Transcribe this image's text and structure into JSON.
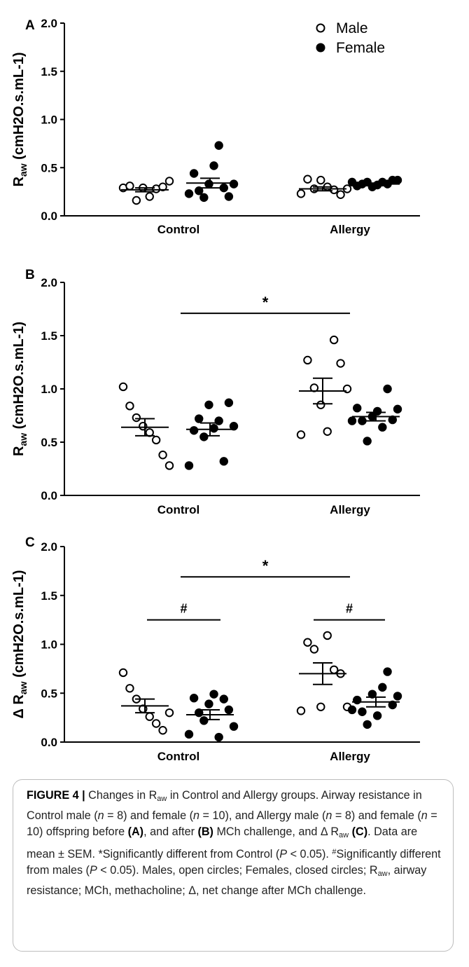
{
  "chart_data": [
    {
      "panel": "A",
      "type": "scatter",
      "ylabel_main": "R",
      "ylabel_sub": "aw",
      "ylabel_unit": "(cmH2O.s.mL-1)",
      "ylim": [
        0,
        2.0
      ],
      "yticks": [
        "0.0",
        "0.5",
        "1.0",
        "1.5",
        "2.0"
      ],
      "categories": [
        "Control",
        "Allergy"
      ],
      "legend": {
        "placement": "top-right",
        "entries": [
          "Male",
          "Female"
        ]
      },
      "groups": [
        {
          "category": "Control",
          "sex": "Male",
          "filled": false,
          "values": [
            0.29,
            0.31,
            0.16,
            0.29,
            0.2,
            0.28,
            0.3,
            0.36
          ],
          "mean": 0.27,
          "sem": 0.02
        },
        {
          "category": "Control",
          "sex": "Female",
          "filled": true,
          "values": [
            0.23,
            0.44,
            0.26,
            0.19,
            0.33,
            0.52,
            0.73,
            0.29,
            0.2,
            0.33
          ],
          "mean": 0.34,
          "sem": 0.05
        },
        {
          "category": "Allergy",
          "sex": "Male",
          "filled": false,
          "values": [
            0.23,
            0.38,
            0.28,
            0.37,
            0.3,
            0.27,
            0.22,
            0.28
          ],
          "mean": 0.28,
          "sem": 0.02
        },
        {
          "category": "Allergy",
          "sex": "Female",
          "filled": true,
          "values": [
            0.35,
            0.31,
            0.33,
            0.35,
            0.3,
            0.32,
            0.35,
            0.33,
            0.37,
            0.37
          ],
          "mean": 0.33,
          "sem": 0.01
        }
      ],
      "annotations": []
    },
    {
      "panel": "B",
      "type": "scatter",
      "ylabel_main": "R",
      "ylabel_sub": "aw",
      "ylabel_unit": "(cmH2O.s.mL-1)",
      "ylim": [
        0,
        2.0
      ],
      "yticks": [
        "0.0",
        "0.5",
        "1.0",
        "1.5",
        "2.0"
      ],
      "categories": [
        "Control",
        "Allergy"
      ],
      "groups": [
        {
          "category": "Control",
          "sex": "Male",
          "filled": false,
          "values": [
            1.02,
            0.84,
            0.73,
            0.65,
            0.59,
            0.52,
            0.38,
            0.28
          ],
          "mean": 0.64,
          "sem": 0.08
        },
        {
          "category": "Control",
          "sex": "Female",
          "filled": true,
          "values": [
            0.28,
            0.61,
            0.72,
            0.55,
            0.85,
            0.63,
            0.7,
            0.32,
            0.87,
            0.65
          ],
          "mean": 0.62,
          "sem": 0.06
        },
        {
          "category": "Allergy",
          "sex": "Male",
          "filled": false,
          "values": [
            0.57,
            1.27,
            1.01,
            0.85,
            0.6,
            1.46,
            1.24,
            1.0
          ],
          "mean": 0.98,
          "sem": 0.12
        },
        {
          "category": "Allergy",
          "sex": "Female",
          "filled": true,
          "values": [
            0.7,
            0.82,
            0.7,
            0.51,
            0.74,
            0.79,
            0.64,
            1.0,
            0.71,
            0.81
          ],
          "mean": 0.74,
          "sem": 0.04
        }
      ],
      "annotations": [
        {
          "symbol": "*",
          "from": "Control",
          "to": "Allergy-Male",
          "y": 1.71
        }
      ]
    },
    {
      "panel": "C",
      "type": "scatter",
      "ylabel_main": "Δ R",
      "ylabel_sub": "aw",
      "ylabel_unit": "(cmH2O.s.mL-1)",
      "ylim": [
        0,
        2.0
      ],
      "yticks": [
        "0.0",
        "0.5",
        "1.0",
        "1.5",
        "2.0"
      ],
      "categories": [
        "Control",
        "Allergy"
      ],
      "groups": [
        {
          "category": "Control",
          "sex": "Male",
          "filled": false,
          "values": [
            0.71,
            0.55,
            0.44,
            0.34,
            0.26,
            0.19,
            0.12,
            0.3
          ],
          "mean": 0.37,
          "sem": 0.07
        },
        {
          "category": "Control",
          "sex": "Female",
          "filled": true,
          "values": [
            0.08,
            0.45,
            0.3,
            0.22,
            0.39,
            0.49,
            0.05,
            0.44,
            0.33,
            0.16
          ],
          "mean": 0.28,
          "sem": 0.05
        },
        {
          "category": "Allergy",
          "sex": "Male",
          "filled": false,
          "values": [
            0.32,
            1.02,
            0.95,
            0.36,
            1.09,
            0.74,
            0.7,
            0.36
          ],
          "mean": 0.7,
          "sem": 0.11
        },
        {
          "category": "Allergy",
          "sex": "Female",
          "filled": true,
          "values": [
            0.33,
            0.43,
            0.31,
            0.18,
            0.49,
            0.27,
            0.56,
            0.72,
            0.38,
            0.47
          ],
          "mean": 0.41,
          "sem": 0.05
        }
      ],
      "annotations": [
        {
          "symbol": "*",
          "from": "Control",
          "to": "Allergy",
          "y": 1.69
        },
        {
          "symbol": "#",
          "group": "Control",
          "y": 1.25
        },
        {
          "symbol": "#",
          "group": "Allergy",
          "y": 1.25
        }
      ]
    }
  ],
  "caption": {
    "label": "FIGURE 4 |",
    "text_1": " Changes in R",
    "sub_1": "aw",
    "text_2": " in Control and Allergy groups. Airway resistance in Control male (",
    "n_male_1": "n",
    "text_3": " = 8) and female (",
    "n_female_1": "n",
    "text_4": " = 10), and Allergy male (",
    "n_male_2": "n",
    "text_5": " = 8) and female (",
    "n_female_2": "n",
    "text_6": " = 10) offspring before ",
    "panel_a": "(A)",
    "text_7": ", and after ",
    "panel_b": "(B)",
    "text_8": " MCh challenge, and Δ R",
    "sub_2": "aw",
    "text_9": " ",
    "panel_c": "(C)",
    "text_10": ". Data are mean ± SEM. *Significantly different from Control (",
    "p_1": "P",
    "text_11": " < 0.05). ",
    "hash": "#",
    "text_12": "Significantly different from males (",
    "p_2": "P",
    "text_13": " < 0.05). Males, open circles; Females, closed circles; R",
    "sub_3": "aw",
    "text_14": ", airway resistance; MCh, methacholine; Δ, net change after MCh challenge."
  }
}
